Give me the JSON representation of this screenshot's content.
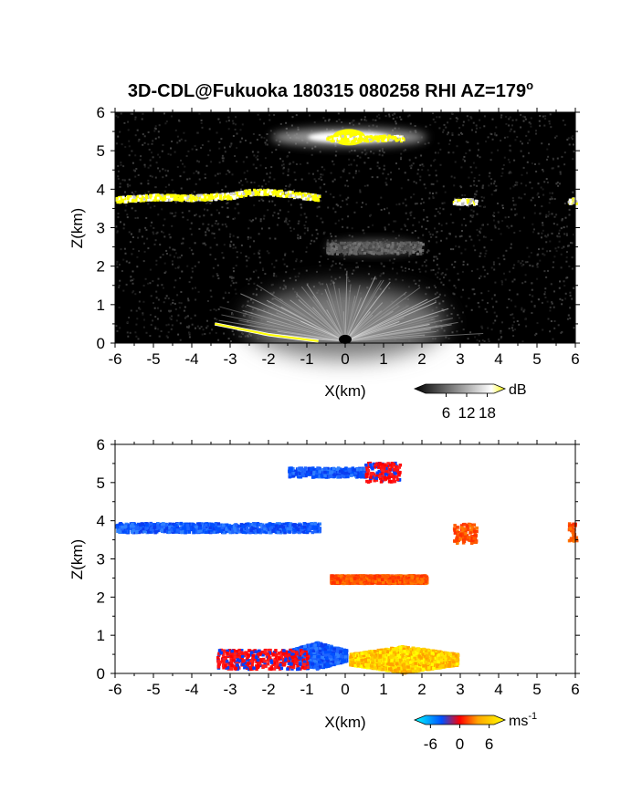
{
  "title": "3D-CDL@Fukuoka 180315 080258 RHI AZ=179",
  "title_superscript": "o",
  "chart_data": [
    {
      "type": "heatmap",
      "quantity": "reflectivity (SNR)",
      "xlabel": "X(km)",
      "ylabel": "Z(km)",
      "xlim": [
        -6,
        6
      ],
      "ylim": [
        0,
        6
      ],
      "xticks": [
        "-6",
        "-5",
        "-4",
        "-3",
        "-2",
        "-1",
        "0",
        "1",
        "2",
        "3",
        "4",
        "5",
        "6"
      ],
      "yticks": [
        "0",
        "1",
        "2",
        "3",
        "4",
        "5",
        "6"
      ],
      "grid": false,
      "background": "#000000",
      "colorbar": {
        "unit": "dB",
        "ticks": [
          "6",
          "12",
          "18"
        ],
        "range": [
          0,
          20
        ],
        "colors": [
          "#000000",
          "#ffffff",
          "#ffff00"
        ]
      },
      "features": [
        {
          "kind": "layer",
          "name_hint": "cirrus",
          "x_range": [
            -0.5,
            1.5
          ],
          "z": 5.35,
          "peak": [
            0.1,
            5.35
          ],
          "strength": "strong"
        },
        {
          "kind": "layer",
          "name_hint": "mid-level",
          "x_range": [
            -6,
            -0.7
          ],
          "z_profile": [
            [
              -6,
              3.75
            ],
            [
              -5,
              3.82
            ],
            [
              -4,
              3.8
            ],
            [
              -3,
              3.85
            ],
            [
              -2.5,
              3.95
            ],
            [
              -2,
              3.95
            ],
            [
              -1.5,
              3.9
            ],
            [
              -0.7,
              3.8
            ]
          ],
          "strength": "strong"
        },
        {
          "kind": "patch",
          "x_range": [
            2.8,
            3.4
          ],
          "z": 3.7,
          "strength": "moderate"
        },
        {
          "kind": "patch",
          "x_range": [
            5.8,
            6
          ],
          "z": 3.72,
          "strength": "moderate"
        },
        {
          "kind": "layer",
          "x_range": [
            -0.5,
            2.0
          ],
          "z": 2.5,
          "strength": "weak"
        },
        {
          "kind": "near-ground",
          "x_range": [
            -1,
            1.5
          ],
          "z_max": 1.2,
          "strength": "moderate"
        },
        {
          "kind": "ground-return",
          "x_range": [
            -3.4,
            -0.7
          ],
          "z_profile": [
            [
              -3.4,
              0.5
            ],
            [
              -2,
              0.22
            ],
            [
              -0.7,
              0.05
            ]
          ],
          "strength": "strong"
        }
      ]
    },
    {
      "type": "heatmap",
      "quantity": "radial velocity",
      "xlabel": "X(km)",
      "ylabel": "Z(km)",
      "xlim": [
        -6,
        6
      ],
      "ylim": [
        0,
        6
      ],
      "xticks": [
        "-6",
        "-5",
        "-4",
        "-3",
        "-2",
        "-1",
        "0",
        "1",
        "2",
        "3",
        "4",
        "5",
        "6"
      ],
      "yticks": [
        "0",
        "1",
        "2",
        "3",
        "4",
        "5",
        "6"
      ],
      "grid": false,
      "background": "#ffffff",
      "colorbar": {
        "unit": "ms",
        "unit_superscript": "-1",
        "ticks": [
          "-6",
          "0",
          "6"
        ],
        "range": [
          -7,
          7
        ],
        "colors": [
          "#00ffff",
          "#0050ff",
          "#ff0000",
          "#ffa500",
          "#ffff00"
        ]
      },
      "features": [
        {
          "kind": "layer",
          "x_range": [
            -1.5,
            0.5
          ],
          "z": 5.3,
          "velocity": -5
        },
        {
          "kind": "patch",
          "x_range": [
            0.5,
            1.4
          ],
          "z": 5.3,
          "velocity": 1
        },
        {
          "kind": "layer",
          "x_range": [
            -6,
            -0.7
          ],
          "z": 3.85,
          "velocity": -5
        },
        {
          "kind": "patch",
          "x_range": [
            2.8,
            3.4
          ],
          "z": 3.7,
          "velocity": 3
        },
        {
          "kind": "patch",
          "x_range": [
            5.8,
            6
          ],
          "z": 3.72,
          "velocity": 3
        },
        {
          "kind": "patch",
          "x_range": [
            -0.4,
            2.1
          ],
          "z": 2.5,
          "velocity": 2
        },
        {
          "kind": "patch",
          "x_range": [
            -1.5,
            0
          ],
          "z": 0.5,
          "velocity": -5
        },
        {
          "kind": "patch",
          "x_range": [
            0.1,
            2.9
          ],
          "z": 0.4,
          "velocity": 5
        },
        {
          "kind": "ground-return",
          "x_range": [
            -3.4,
            -1.0
          ],
          "z": 0.4,
          "velocity": 0
        }
      ]
    }
  ]
}
